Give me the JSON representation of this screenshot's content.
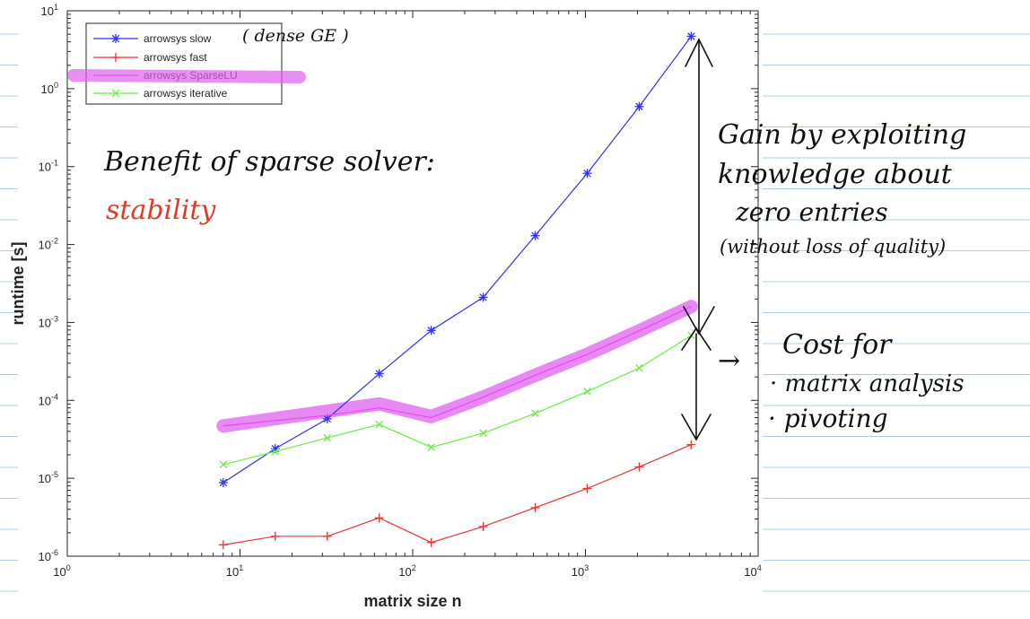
{
  "colors": {
    "slow": "#3333ee",
    "fast": "#ee3333",
    "iterative": "#66ee44",
    "sparselu": "#e24fe8",
    "highlighter": "#e060f0",
    "annotation_black": "#111111",
    "annotation_red": "#e03a2a",
    "notebook_line": "#a9d0e8",
    "axis": "#262626"
  },
  "chart_data": {
    "type": "line",
    "xscale": "log",
    "yscale": "log",
    "xlim": [
      1,
      10000
    ],
    "ylim": [
      1e-06,
      10
    ],
    "xlabel": "matrix size n",
    "ylabel": "runtime [s]",
    "grid": false,
    "legend_position": "top-left",
    "x_ticks": [
      {
        "base": "10",
        "exp": "0",
        "value": 1
      },
      {
        "base": "10",
        "exp": "1",
        "value": 10
      },
      {
        "base": "10",
        "exp": "2",
        "value": 100
      },
      {
        "base": "10",
        "exp": "3",
        "value": 1000
      },
      {
        "base": "10",
        "exp": "4",
        "value": 10000
      }
    ],
    "y_ticks": [
      {
        "base": "10",
        "exp": "-6",
        "value": 1e-06
      },
      {
        "base": "10",
        "exp": "-5",
        "value": 1e-05
      },
      {
        "base": "10",
        "exp": "-4",
        "value": 0.0001
      },
      {
        "base": "10",
        "exp": "-3",
        "value": 0.001
      },
      {
        "base": "10",
        "exp": "-2",
        "value": 0.01
      },
      {
        "base": "10",
        "exp": "-1",
        "value": 0.1
      },
      {
        "base": "10",
        "exp": "0",
        "value": 1
      },
      {
        "base": "10",
        "exp": "1",
        "value": 10
      }
    ],
    "x": [
      8,
      16,
      32,
      64,
      128,
      256,
      512,
      1024,
      2048,
      4096
    ],
    "series": [
      {
        "name": "arrowsys slow",
        "color_key": "slow",
        "marker": "asterisk",
        "values": [
          8.8e-06,
          2.4e-05,
          5.8e-05,
          0.00022,
          0.00079,
          0.0021,
          0.013,
          0.082,
          0.59,
          4.7
        ]
      },
      {
        "name": "arrowsys fast",
        "color_key": "fast",
        "marker": "plus",
        "values": [
          1.4e-06,
          1.8e-06,
          1.8e-06,
          3.1e-06,
          1.5e-06,
          2.4e-06,
          4.2e-06,
          7.4e-06,
          1.4e-05,
          2.7e-05
        ]
      },
      {
        "name": "arrowsys SparseLU",
        "color_key": "sparselu",
        "marker": "none",
        "values": [
          4.7e-05,
          5.5e-05,
          6.4e-05,
          8e-05,
          6e-05,
          0.00011,
          0.00021,
          0.00039,
          0.00078,
          0.0016
        ]
      },
      {
        "name": "arrowsys iterative",
        "color_key": "iterative",
        "marker": "x",
        "values": [
          1.5e-05,
          2.2e-05,
          3.3e-05,
          4.9e-05,
          2.5e-05,
          3.8e-05,
          6.8e-05,
          0.00013,
          0.00026,
          0.00068
        ]
      }
    ],
    "highlight_sparselu": {
      "x": [
        8,
        64,
        128,
        256,
        512,
        1024,
        2048,
        4096
      ],
      "values": [
        4.7e-05,
        9e-05,
        6.2e-05,
        0.00011,
        0.00021,
        0.00039,
        0.00078,
        0.0016
      ]
    }
  },
  "annotations": {
    "legend_note": "( dense GE )",
    "benefit_text": "Benefit of sparse solver:",
    "stability_text": "stability",
    "gain_lines": [
      "Gain by exploiting",
      "knowledge about",
      "zero entries",
      "(without loss of quality)"
    ],
    "cost_arrow": "→",
    "cost_title": "Cost for",
    "cost_items": [
      "· matrix analysis",
      "· pivoting"
    ]
  }
}
